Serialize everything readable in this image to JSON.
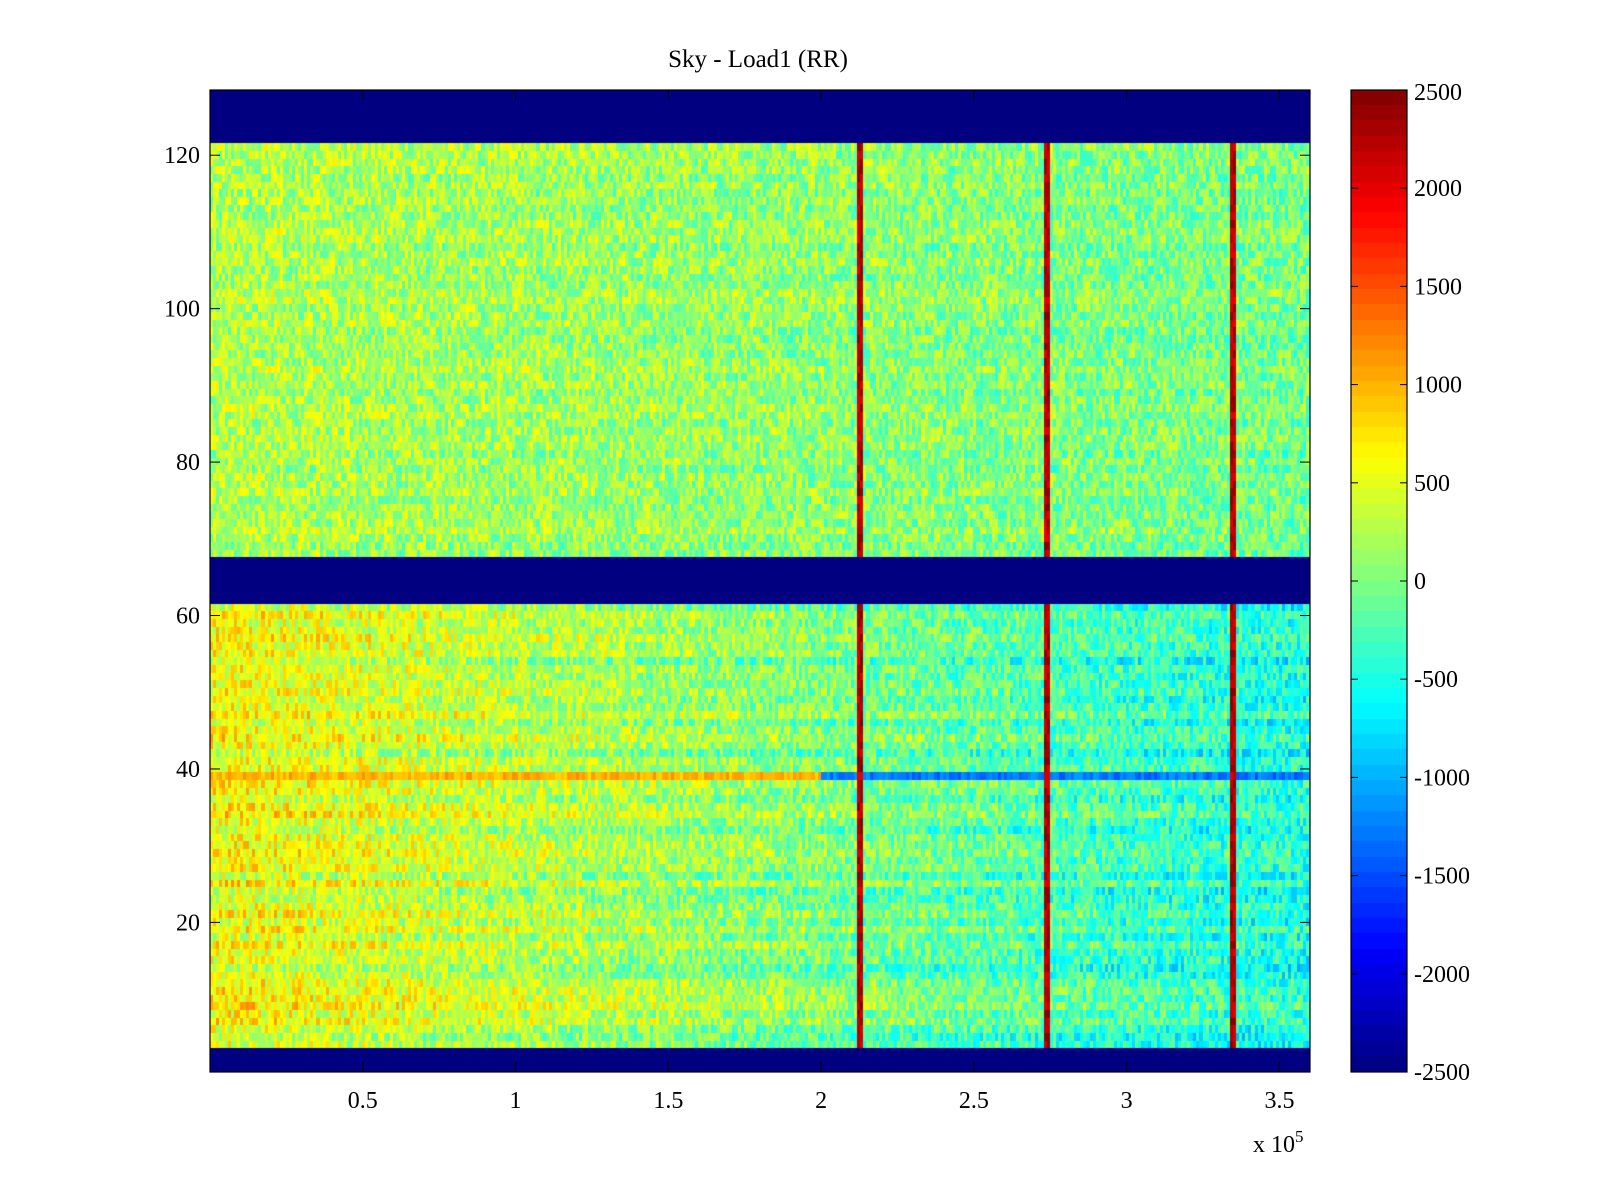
{
  "chart_data": {
    "type": "heatmap",
    "title": "Sky - Load1 (RR)",
    "xlabel": "",
    "ylabel": "",
    "x_multiplier": "x 10",
    "x_multiplier_exponent": "5",
    "xlim": [
      0,
      3.6
    ],
    "ylim": [
      0.5,
      128.5
    ],
    "xticks": [
      0.5,
      1,
      1.5,
      2,
      2.5,
      3,
      3.5
    ],
    "xtick_labels": [
      "0.5",
      "1",
      "1.5",
      "2",
      "2.5",
      "3",
      "3.5"
    ],
    "yticks": [
      20,
      40,
      60,
      80,
      100,
      120
    ],
    "ytick_labels": [
      "20",
      "40",
      "60",
      "80",
      "100",
      "120"
    ],
    "colormap": "jet",
    "clim": [
      -2500,
      2500
    ],
    "colorbar_ticks": [
      2500,
      2000,
      1500,
      1000,
      500,
      0,
      -500,
      -1000,
      -1500,
      -2000,
      -2500
    ],
    "colorbar_tick_labels": [
      "2500",
      "2000",
      "1500",
      "1000",
      "500",
      "0",
      "-500",
      "-1000",
      "-1500",
      "-2000",
      "-2500"
    ],
    "masked_row_bands": [
      [
        0.5,
        3.5
      ],
      [
        61.5,
        67.5
      ],
      [
        121.5,
        128.5
      ]
    ],
    "masked_value": -2500,
    "spike_columns_x": [
      2.13,
      2.74,
      3.35
    ],
    "spike_value": 2500,
    "cold_row_band": {
      "row": 39,
      "x_start": 2.0,
      "x_end": 3.6,
      "value": -1300
    },
    "warm_row_band": {
      "row": 39,
      "x_start": 0.0,
      "x_end": 1.95,
      "value": 1000
    },
    "typical_level_left": 500,
    "typical_level_right": -400,
    "description_levels": {
      "upper_half_mean": 100,
      "lower_half_left_mean": 600,
      "lower_half_right_mean": -500
    }
  }
}
